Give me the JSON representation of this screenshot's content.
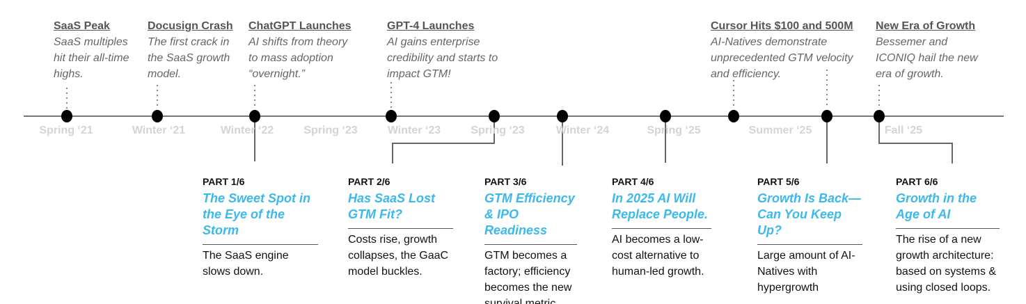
{
  "events": [
    {
      "title": "SaaS Peak",
      "desc": "SaaS multiples hit their all-time highs."
    },
    {
      "title": "Docusign Crash",
      "desc": "The first crack in the SaaS growth model."
    },
    {
      "title": "ChatGPT Launches",
      "desc": "AI shifts from theory to mass adoption “overnight.”"
    },
    {
      "title": "GPT-4 Launches",
      "desc": "AI gains enterprise credibility and starts to impact GTM!"
    },
    {
      "title": "Cursor Hits $100 and 500M",
      "desc": "AI-Natives demonstrate unprecedented GTM velocity and efficiency."
    },
    {
      "title": "New Era of Growth",
      "desc": "Bessemer and ICONIQ hail the new era of growth."
    }
  ],
  "dates": [
    "Spring ‘21",
    "Winter ‘21",
    "Winter ‘22",
    "Spring ‘23",
    "Winter ‘23",
    "Spring ‘23",
    "Winter ‘24",
    "Spring ‘25",
    "Summer ‘25",
    "Fall ‘25"
  ],
  "parts": [
    {
      "num": "PART 1/6",
      "title": "The Sweet Spot in the Eye of the Storm",
      "desc": "The SaaS engine slows down."
    },
    {
      "num": "PART 2/6",
      "title": "Has SaaS Lost GTM Fit?",
      "desc": "Costs rise, growth collapses, the GaaC model buckles."
    },
    {
      "num": "PART 3/6",
      "title": "GTM Efficiency & IPO Readiness",
      "desc": "GTM becomes a factory; efficiency becomes the new survival metric."
    },
    {
      "num": "PART 4/6",
      "title": "In 2025 AI Will Replace People.",
      "desc": "AI becomes a low-cost alternative to human-led growth."
    },
    {
      "num": "PART 5/6",
      "title": "Growth Is Back—Can You Keep Up?",
      "desc": "Large amount of AI-Natives with hypergrowth"
    },
    {
      "num": "PART 6/6",
      "title": "Growth in the Age of AI",
      "desc": "The rise of a new growth architecture: based on systems & using closed loops."
    }
  ]
}
